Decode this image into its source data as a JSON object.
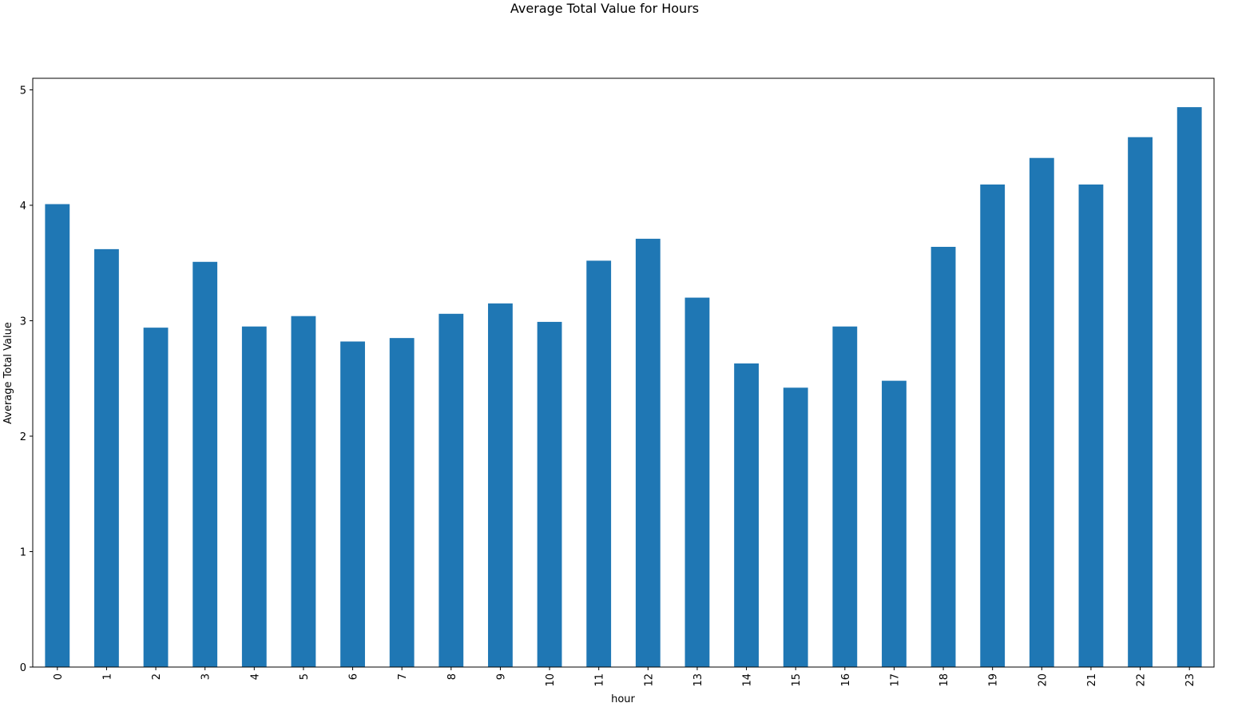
{
  "chart_data": {
    "type": "bar",
    "title": "Average Total Value for Hours",
    "x_label": "hour",
    "y_label": "Average Total Value",
    "categories": [
      "0",
      "1",
      "2",
      "3",
      "4",
      "5",
      "6",
      "7",
      "8",
      "9",
      "10",
      "11",
      "12",
      "13",
      "14",
      "15",
      "16",
      "17",
      "18",
      "19",
      "20",
      "21",
      "22",
      "23"
    ],
    "values": [
      4.01,
      3.62,
      2.94,
      3.51,
      2.95,
      3.04,
      2.82,
      2.85,
      3.06,
      3.15,
      2.99,
      3.52,
      3.71,
      3.2,
      2.63,
      2.42,
      2.95,
      2.48,
      3.64,
      4.18,
      4.41,
      4.18,
      4.59,
      4.85
    ],
    "color": "#1f77b4",
    "ylim": [
      0,
      5.1
    ],
    "yticks": [
      0,
      1,
      2,
      3,
      4,
      5
    ],
    "grid": false
  }
}
